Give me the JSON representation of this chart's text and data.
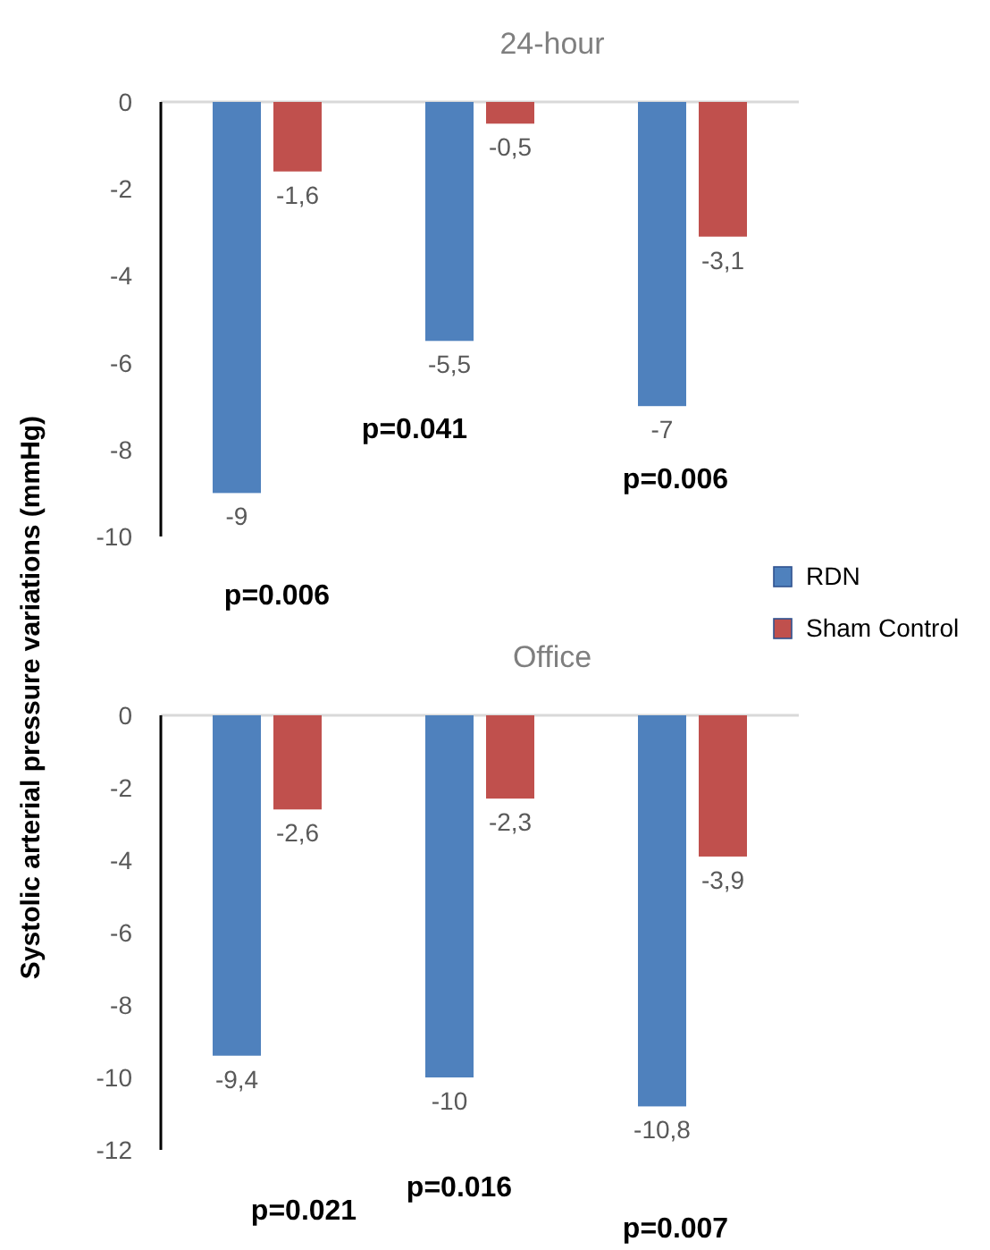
{
  "chart_data": [
    {
      "type": "bar",
      "title": "24-hour",
      "ylabel": "Systolic arterial pressure variations  (mmHg)",
      "categories": [
        null,
        null,
        null
      ],
      "series": [
        {
          "name": "RDN",
          "color": "#4f81bd",
          "values": [
            -9,
            -5.5,
            -7
          ],
          "value_labels": [
            "-9",
            "-5,5",
            "-7"
          ]
        },
        {
          "name": "Sham Control",
          "color": "#c0504d",
          "values": [
            -1.6,
            -0.5,
            -3.1
          ],
          "value_labels": [
            "-1,6",
            "-0,5",
            "-3,1"
          ]
        }
      ],
      "ylim": [
        -10,
        0
      ],
      "yticks": [
        0,
        -2,
        -4,
        -6,
        -8,
        -10
      ],
      "legend": "bottom right",
      "annotations": [
        "p=0.006",
        "p=0.041",
        "p=0.006"
      ]
    },
    {
      "type": "bar",
      "title": "Office",
      "categories": [
        null,
        null,
        null
      ],
      "series": [
        {
          "color": "#4f81bd",
          "values": [
            -9.4,
            -10,
            -10.8
          ],
          "value_labels": [
            "-9,4",
            "-10",
            "-10,8"
          ]
        },
        {
          "color": "#c0504d",
          "values": [
            -2.6,
            -2.3,
            -3.9
          ],
          "value_labels": [
            "-2,6",
            "-2,3",
            "-3,9"
          ]
        }
      ],
      "ylim": [
        -12,
        0
      ],
      "yticks": [
        0,
        -2,
        -4,
        -6,
        -8,
        -10,
        -12
      ],
      "legend": false,
      "annotations": [
        "p=0.021",
        "p=0.016",
        "p=0.007"
      ]
    }
  ]
}
